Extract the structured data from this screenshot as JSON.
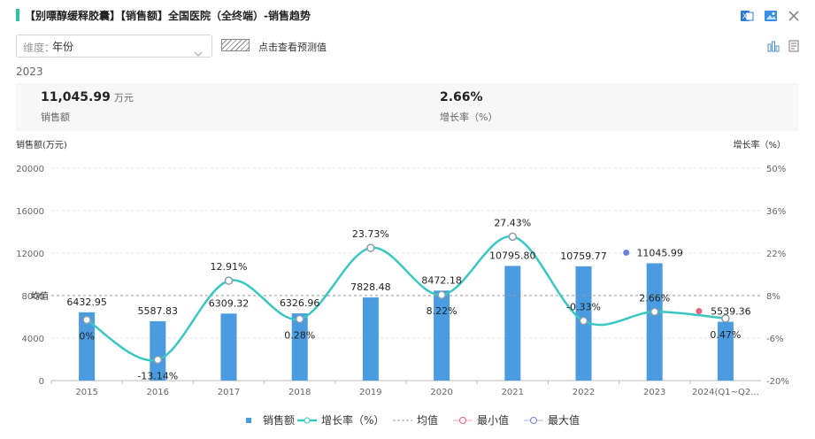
{
  "header": {
    "title": "【别嘌醇缓释胶囊】【销售额】全国医院（全终端）-销售趋势",
    "accent_color": "#2fc2a6",
    "icons": [
      "excel-icon",
      "image-icon",
      "close-icon"
    ]
  },
  "toolbar": {
    "dimension_key": "维度：",
    "dimension_value": "年份",
    "predict_label": "点击查看预测值",
    "view_icons": [
      "bar-chart-icon",
      "table-view-icon"
    ]
  },
  "summary": {
    "year": "2023",
    "sales_value": "11,045.99",
    "sales_unit": "万元",
    "sales_label": "销售额",
    "growth_value": "2.66%",
    "growth_label": "增长率（%）"
  },
  "chart_data": {
    "type": "bar",
    "categories": [
      "2015",
      "2016",
      "2017",
      "2018",
      "2019",
      "2020",
      "2021",
      "2022",
      "2023",
      "2024(Q1~Q2..."
    ],
    "left_axis": {
      "title": "销售额(万元)",
      "ticks": [
        "0",
        "4000",
        "8000",
        "12000",
        "16000",
        "20000"
      ],
      "range": [
        0,
        20000
      ]
    },
    "right_axis": {
      "title": "增长率（%）",
      "ticks": [
        "-20%",
        "-6%",
        "8%",
        "22%",
        "36%",
        "50%"
      ],
      "range": [
        -20,
        50
      ]
    },
    "bar_color": "#4a9be0",
    "line_color": "#38c7c2",
    "series": [
      {
        "name": "销售额",
        "kind": "bar",
        "axis": "left",
        "values": [
          6432.95,
          5587.83,
          6309.32,
          6326.96,
          7828.48,
          8472.18,
          10795.8,
          10759.77,
          11045.99,
          5539.36
        ],
        "labels": [
          "6432.95",
          "5587.83",
          "6309.32",
          "6326.96",
          "7828.48",
          "8472.18",
          "10795.80",
          "10759.77",
          "11045.99",
          "5539.36"
        ]
      },
      {
        "name": "增长率（%）",
        "kind": "line",
        "axis": "right",
        "values": [
          0,
          -13.14,
          12.91,
          0.28,
          23.73,
          8.22,
          27.43,
          -0.33,
          2.66,
          0.47
        ],
        "labels": [
          "0%",
          "-13.14%",
          "12.91%",
          "0.28%",
          "23.73%",
          "8.22%",
          "27.43%",
          "-0.33%",
          "2.66%",
          "0.47%"
        ]
      }
    ],
    "mean_label": "均值",
    "mean_value": 8009.0,
    "min_index": 9,
    "max_index": 8,
    "min_color": "#e8607a",
    "max_color": "#6a7fe0",
    "legend": [
      {
        "label": "销售额",
        "symbol": "bar"
      },
      {
        "label": "增长率（%）",
        "symbol": "line"
      },
      {
        "label": "均值",
        "symbol": "dash"
      },
      {
        "label": "最小值",
        "symbol": "min"
      },
      {
        "label": "最大值",
        "symbol": "max"
      }
    ]
  }
}
